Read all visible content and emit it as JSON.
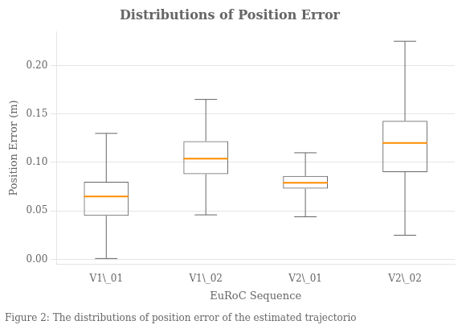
{
  "chart_data": {
    "type": "box",
    "title": "Distributions of Position Error",
    "xlabel": "EuRoC Sequence",
    "ylabel": "Position Error (m)",
    "caption": "Figure 2: The distributions of position error of the estimated trajectorio",
    "categories": [
      "V1\\_01",
      "V1\\_02",
      "V2\\_01",
      "V2\\_02"
    ],
    "boxes": [
      {
        "whisker_low": 0.001,
        "q1": 0.045,
        "median": 0.065,
        "q3": 0.08,
        "whisker_high": 0.13
      },
      {
        "whisker_low": 0.046,
        "q1": 0.088,
        "median": 0.104,
        "q3": 0.122,
        "whisker_high": 0.165
      },
      {
        "whisker_low": 0.044,
        "q1": 0.073,
        "median": 0.079,
        "q3": 0.086,
        "whisker_high": 0.11
      },
      {
        "whisker_low": 0.025,
        "q1": 0.09,
        "median": 0.12,
        "q3": 0.143,
        "whisker_high": 0.225
      }
    ],
    "color": "#ff8c00",
    "ylim": [
      -0.005,
      0.235
    ],
    "yticks": [
      {
        "value": 0.0,
        "label": "0.00"
      },
      {
        "value": 0.05,
        "label": "0.05"
      },
      {
        "value": 0.1,
        "label": "0.10"
      },
      {
        "value": 0.15,
        "label": "0.15"
      },
      {
        "value": 0.2,
        "label": "0.20"
      }
    ],
    "grid": true
  }
}
